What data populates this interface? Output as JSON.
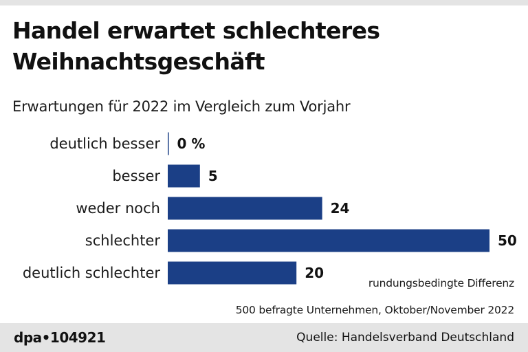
{
  "header": {
    "title_line1": "Handel erwartet schlechteres",
    "title_line2": "Weihnachtsgeschäft",
    "subtitle": "Erwartungen für 2022 im Vergleich zum Vorjahr"
  },
  "notes": {
    "rounding": "rundungsbedingte Differenz",
    "sample": "500 befragte Unternehmen, Oktober/November 2022"
  },
  "footer": {
    "agency": "dpa•104921",
    "source": "Quelle: Handelsverband Deutschland"
  },
  "colors": {
    "bar": "#1b3f86",
    "footer_bg": "#e4e4e4"
  },
  "chart_data": {
    "type": "bar",
    "orientation": "horizontal",
    "title": "Handel erwartet schlechteres Weihnachtsgeschäft",
    "subtitle": "Erwartungen für 2022 im Vergleich zum Vorjahr",
    "categories": [
      "deutlich besser",
      "besser",
      "weder noch",
      "schlechter",
      "deutlich schlechter"
    ],
    "values": [
      0,
      5,
      24,
      50,
      20
    ],
    "value_labels": [
      "0 %",
      "5",
      "24",
      "50",
      "20"
    ],
    "unit": "%",
    "xlim": [
      0,
      50
    ],
    "grid": false,
    "legend": "none"
  }
}
